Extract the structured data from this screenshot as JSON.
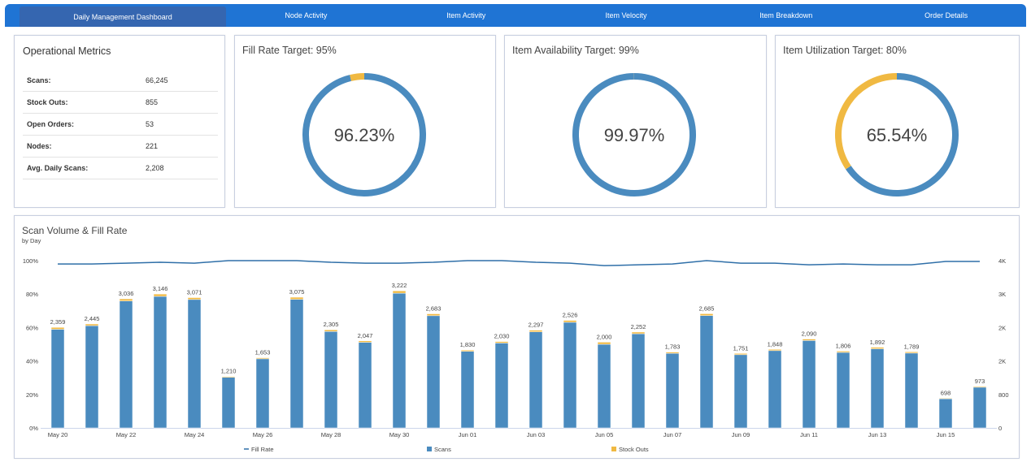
{
  "nav": {
    "tabs": [
      "Daily Management Dashboard",
      "Node Activity",
      "Item Activity",
      "Item Velocity",
      "Item Breakdown",
      "Order Details"
    ]
  },
  "metrics": {
    "title": "Operational Metrics",
    "rows": [
      {
        "label": "Scans:",
        "value": "66,245"
      },
      {
        "label": "Stock Outs:",
        "value": "855"
      },
      {
        "label": "Open Orders:",
        "value": "53"
      },
      {
        "label": "Nodes:",
        "value": "221"
      },
      {
        "label": "Avg. Daily Scans:",
        "value": "2,208"
      }
    ]
  },
  "chart_data": [
    {
      "type": "donut",
      "title": "Fill Rate Target: 95%",
      "values": [
        96.23,
        3.77
      ],
      "value_labels": [
        "96.23%",
        null
      ],
      "colors": [
        "#4a8bbf",
        "#f0b942"
      ]
    },
    {
      "type": "donut",
      "title": "Item Availability Target: 99%",
      "values": [
        99.97,
        0.03
      ],
      "value_labels": [
        "99.97%",
        null
      ],
      "colors": [
        "#4a8bbf",
        "#f0b942"
      ]
    },
    {
      "type": "donut",
      "title": "Item Utilization Target: 80%",
      "values": [
        65.54,
        34.46
      ],
      "value_labels": [
        "65.54%",
        null
      ],
      "colors": [
        "#4a8bbf",
        "#f0b942"
      ]
    },
    {
      "type": "combo",
      "title": "Scan Volume & Fill Rate",
      "subtitle": "by Day",
      "categories": [
        "May 20",
        null,
        "May 22",
        null,
        "May 24",
        null,
        "May 26",
        null,
        "May 28",
        null,
        "May 30",
        null,
        "Jun 01",
        null,
        "Jun 03",
        null,
        "Jun 05",
        null,
        "Jun 07",
        null,
        "Jun 09",
        null,
        "Jun 11",
        null,
        "Jun 13",
        null,
        "Jun 15",
        null
      ],
      "ylim": [
        0,
        100
      ],
      "yticks": [
        {
          "value": 0,
          "label": "0%"
        },
        {
          "value": 20,
          "label": "20%"
        },
        {
          "value": 40,
          "label": "40%"
        },
        {
          "value": 60,
          "label": "60%"
        },
        {
          "value": 80,
          "label": "80%"
        },
        {
          "value": 100,
          "label": "100%"
        }
      ],
      "y2lim": [
        0,
        4000
      ],
      "y2ticks": [
        0,
        800,
        {
          "value": 1600,
          "label": "2K"
        },
        {
          "value": 2400,
          "label": "2K"
        },
        {
          "value": 3200,
          "label": "3K"
        },
        {
          "value": 4000,
          "label": "4K"
        }
      ],
      "legend": "bottom",
      "series": [
        {
          "name": "Fill Rate",
          "type": "line",
          "color": "#2f6fa8",
          "values": [
            98,
            98,
            98.5,
            99,
            98.5,
            100,
            100,
            100,
            99,
            98.5,
            98.5,
            99,
            100,
            100,
            99,
            98.5,
            97,
            97.5,
            98,
            100,
            98.5,
            98.5,
            97.5,
            98,
            97.5,
            97.5,
            99.5,
            99.5
          ]
        },
        {
          "name": "Scans",
          "type": "bar",
          "axis": "y2",
          "color": "#4a8bbf",
          "values": [
            2359,
            2445,
            3036,
            3146,
            3071,
            1210,
            1653,
            3075,
            2305,
            2047,
            3222,
            2683,
            1830,
            2030,
            2297,
            2526,
            2000,
            2252,
            1783,
            2685,
            1751,
            1848,
            2090,
            1806,
            1892,
            1789,
            698,
            973
          ],
          "value_labels": [
            "2,359",
            "2,445",
            "3,036",
            "3,146",
            "3,071",
            "1,210",
            "1,653",
            "3,075",
            "2,305",
            "2,047",
            "3,222",
            "2,683",
            "1,830",
            "2,030",
            "2,297",
            "2,526",
            "2,000",
            "2,252",
            "1,783",
            "2,685",
            "1,751",
            "1,848",
            "2,090",
            "1,806",
            "1,892",
            "1,789",
            "698",
            "973"
          ]
        },
        {
          "name": "Stock Outs",
          "type": "bar",
          "axis": "y2",
          "color": "#f0b942",
          "values": [
            45,
            40,
            50,
            55,
            45,
            20,
            25,
            50,
            40,
            35,
            55,
            45,
            30,
            35,
            40,
            45,
            50,
            40,
            30,
            45,
            30,
            30,
            35,
            30,
            35,
            30,
            15,
            20
          ]
        }
      ]
    }
  ]
}
